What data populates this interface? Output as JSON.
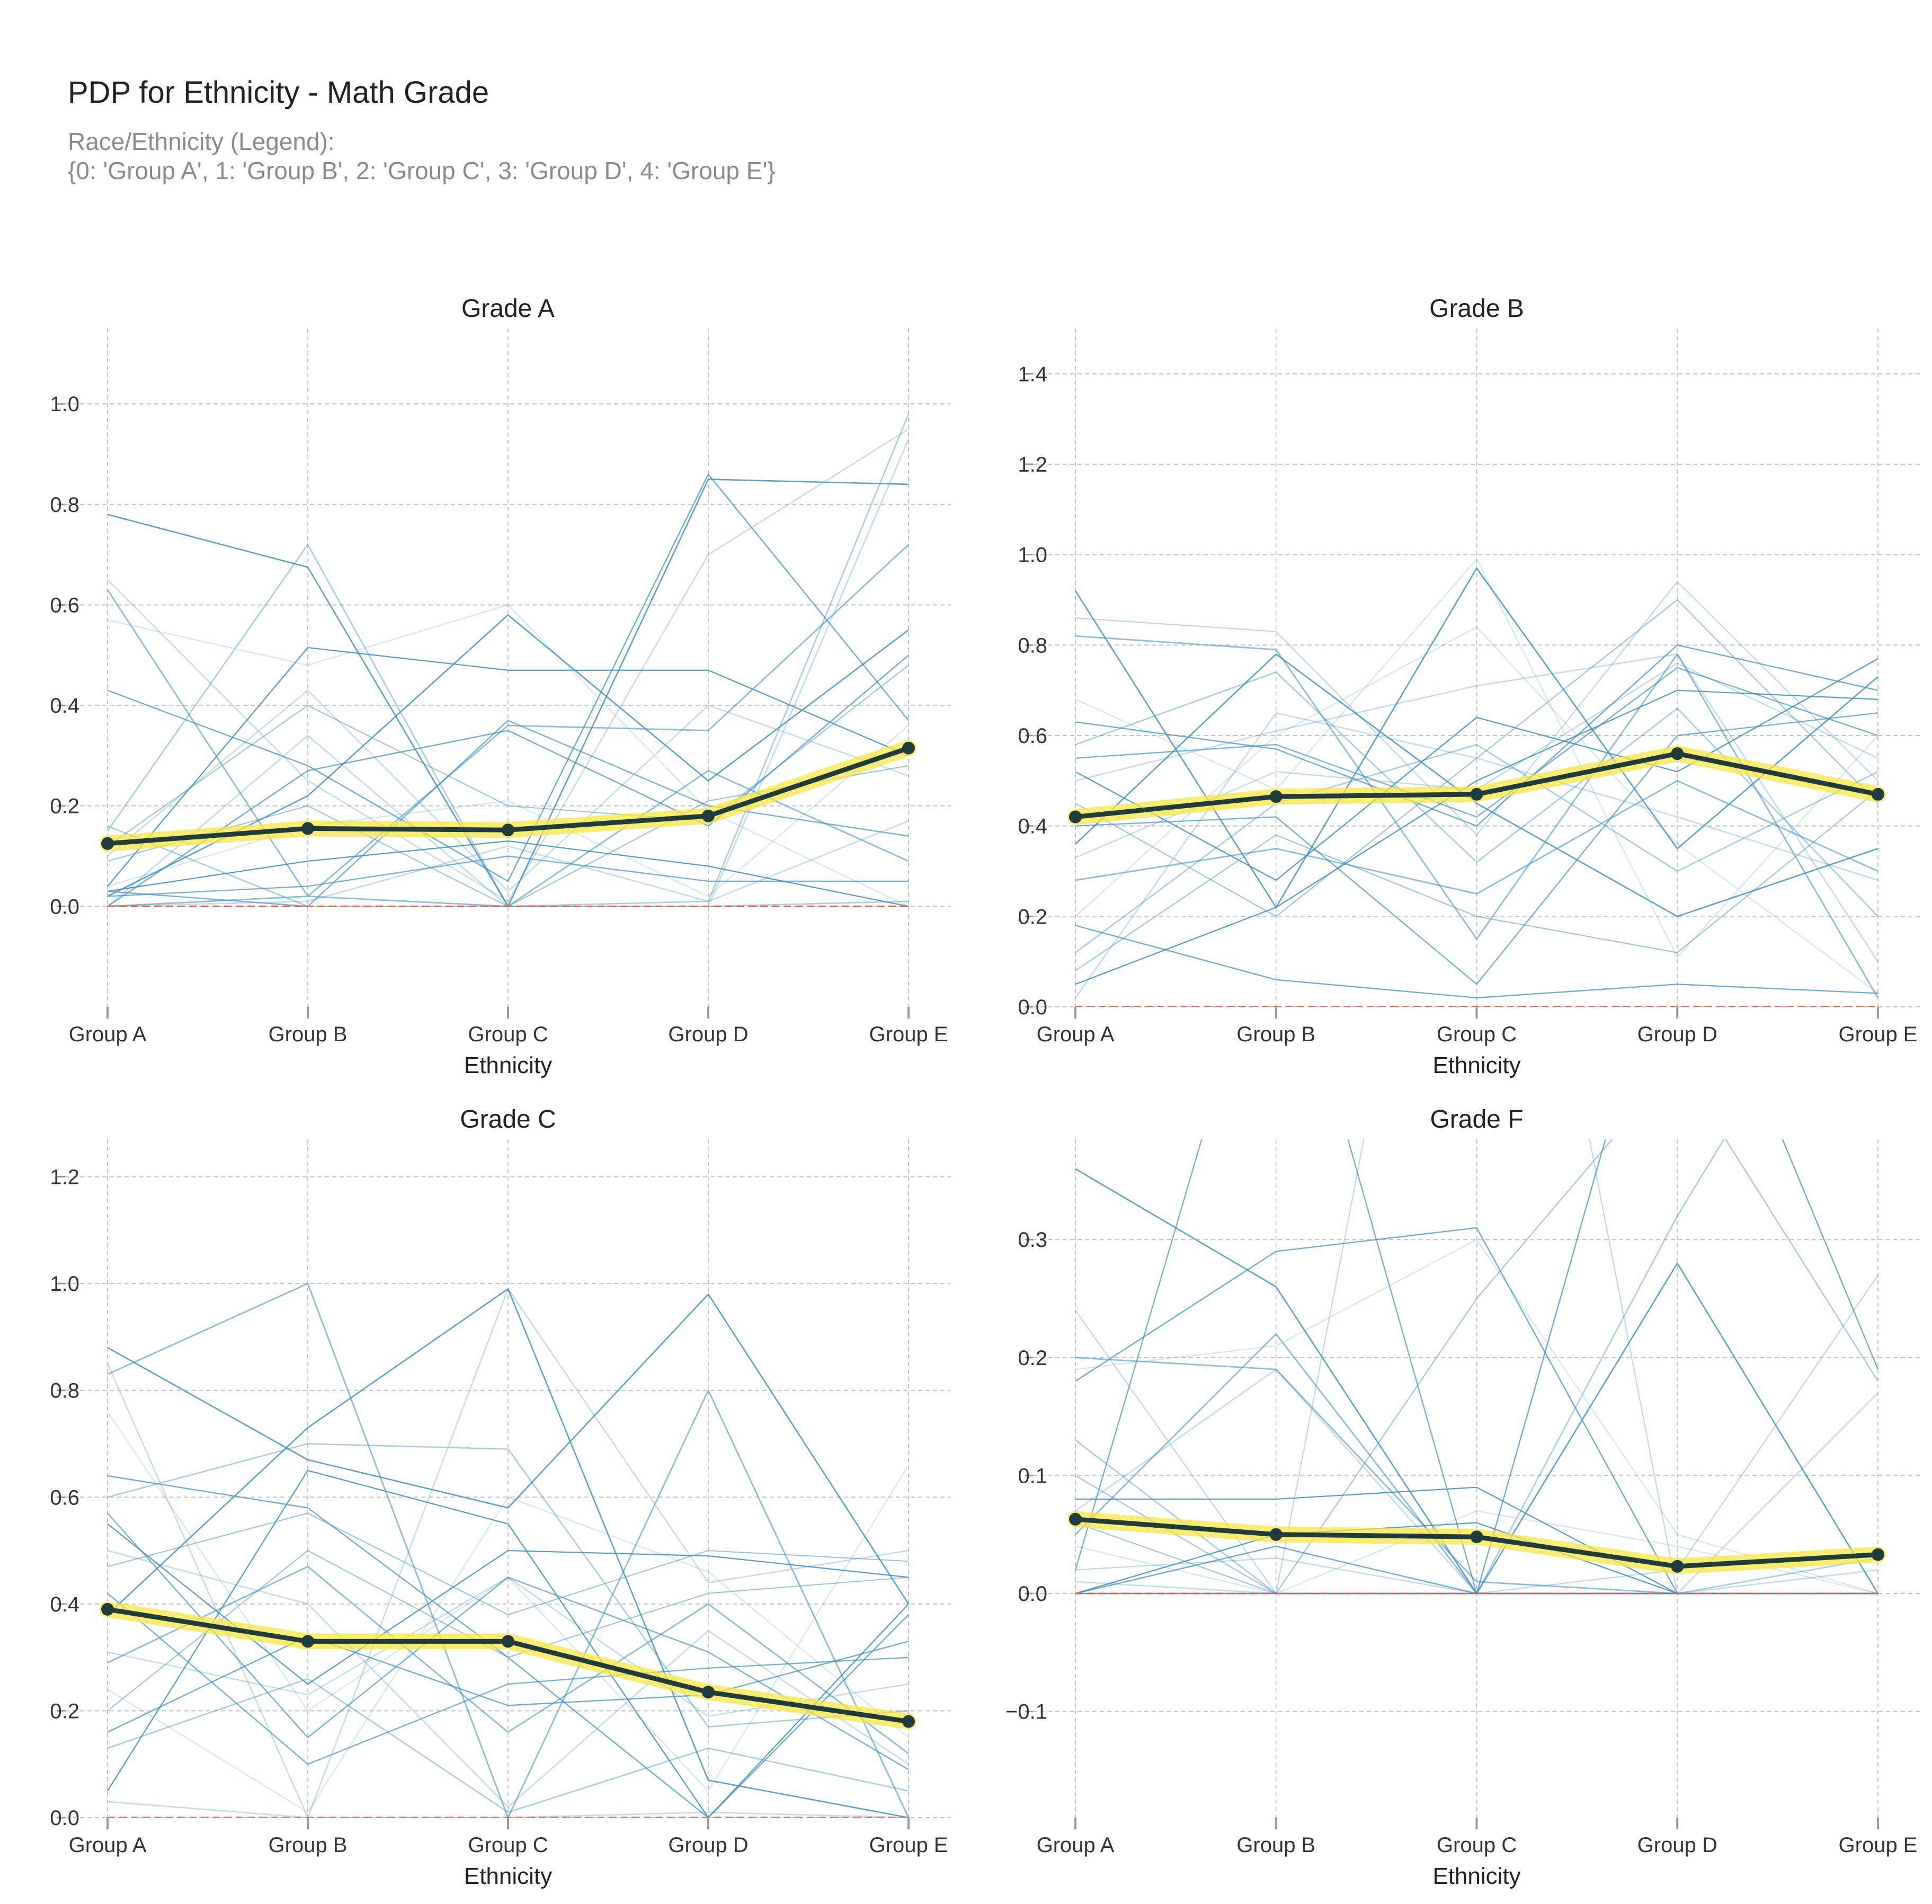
{
  "figure": {
    "title": "PDP for Ethnicity - Math Grade",
    "subtitle_line1": "Race/Ethnicity (Legend):",
    "subtitle_line2": "{0: 'Group A', 1: 'Group B', 2: 'Group C', 3: 'Group D', 4: 'Group E'}"
  },
  "colors": {
    "ice": "#3f8fc4",
    "pdp_line": "#1f3b3b",
    "pdp_band": "#f5e642",
    "zero_line": "#e8604c",
    "grid": "#c4c4c4",
    "tick": "#9a9a9a"
  },
  "chart_data": [
    {
      "type": "line",
      "title": "Grade A",
      "xlabel": "Ethnicity",
      "ylabel": "",
      "categories": [
        "Group A",
        "Group B",
        "Group C",
        "Group D",
        "Group E"
      ],
      "ylim": [
        -0.2,
        1.15
      ],
      "yticks": [
        0.0,
        0.2,
        0.4,
        0.6,
        0.8,
        1.0
      ],
      "ytick_labels": [
        "0.0",
        "0.2",
        "0.4",
        "0.6",
        "0.8",
        "1.0"
      ],
      "grid": true,
      "pdp": [
        0.125,
        0.155,
        0.152,
        0.18,
        0.315
      ],
      "ice_lines": [
        [
          0.78,
          0.675,
          0.0,
          0.85,
          0.84
        ],
        [
          0.65,
          0.25,
          0.01,
          0.7,
          0.95
        ],
        [
          0.63,
          0.02,
          0.36,
          0.35,
          0.72
        ],
        [
          0.57,
          0.48,
          0.6,
          0.19,
          0.0
        ],
        [
          0.43,
          0.28,
          0.05,
          0.86,
          0.37
        ],
        [
          0.15,
          0.72,
          0.0,
          0.01,
          0.98
        ],
        [
          0.04,
          0.515,
          0.47,
          0.47,
          0.3
        ],
        [
          0.0,
          0.34,
          0.0,
          0.0,
          0.93
        ],
        [
          0.12,
          0.4,
          0.2,
          0.17,
          0.48
        ],
        [
          0.03,
          0.0,
          0.37,
          0.2,
          0.14
        ],
        [
          0.02,
          0.22,
          0.58,
          0.25,
          0.55
        ],
        [
          0.1,
          0.43,
          0.03,
          0.4,
          0.26
        ],
        [
          0.0,
          0.02,
          0.0,
          0.27,
          0.09
        ],
        [
          0.04,
          0.16,
          0.21,
          0.02,
          0.36
        ],
        [
          0.0,
          0.27,
          0.35,
          0.16,
          0.5
        ],
        [
          0.16,
          0.0,
          0.0,
          0.0,
          0.01
        ],
        [
          0.03,
          0.09,
          0.13,
          0.08,
          0.0
        ],
        [
          0.0,
          0.01,
          0.12,
          0.01,
          0.17
        ],
        [
          0.09,
          0.2,
          0.0,
          0.21,
          0.28
        ],
        [
          0.02,
          0.04,
          0.1,
          0.05,
          0.05
        ]
      ]
    },
    {
      "type": "line",
      "title": "Grade B",
      "xlabel": "Ethnicity",
      "ylabel": "",
      "categories": [
        "Group A",
        "Group B",
        "Group C",
        "Group D",
        "Group E"
      ],
      "ylim": [
        0.0,
        1.5
      ],
      "yticks": [
        0.0,
        0.2,
        0.4,
        0.6,
        0.8,
        1.0,
        1.2,
        1.4
      ],
      "ytick_labels": [
        "0.0",
        "0.2",
        "0.4",
        "0.6",
        "0.8",
        "1.0",
        "1.2",
        "1.4"
      ],
      "grid": true,
      "pdp": [
        0.42,
        0.465,
        0.47,
        0.56,
        0.47
      ],
      "ice_lines": [
        [
          0.92,
          0.22,
          0.97,
          0.35,
          0.73
        ],
        [
          0.86,
          0.83,
          0.38,
          0.94,
          0.5
        ],
        [
          0.82,
          0.79,
          0.15,
          0.78,
          0.02
        ],
        [
          0.68,
          0.48,
          0.99,
          0.11,
          0.6
        ],
        [
          0.63,
          0.57,
          0.4,
          0.8,
          0.7
        ],
        [
          0.58,
          0.74,
          0.32,
          0.66,
          0.2
        ],
        [
          0.52,
          0.28,
          0.64,
          0.52,
          0.77
        ],
        [
          0.5,
          0.61,
          0.71,
          0.78,
          0.1
        ],
        [
          0.45,
          0.2,
          0.55,
          0.9,
          0.45
        ],
        [
          0.4,
          0.42,
          0.05,
          0.6,
          0.65
        ],
        [
          0.36,
          0.78,
          0.45,
          0.2,
          0.35
        ],
        [
          0.33,
          0.52,
          0.48,
          0.76,
          0.55
        ],
        [
          0.28,
          0.35,
          0.25,
          0.5,
          0.3
        ],
        [
          0.2,
          0.6,
          0.84,
          0.36,
          0.03
        ],
        [
          0.18,
          0.06,
          0.02,
          0.05,
          0.03
        ],
        [
          0.12,
          0.45,
          0.58,
          0.3,
          0.52
        ],
        [
          0.05,
          0.22,
          0.5,
          0.7,
          0.68
        ],
        [
          0.02,
          0.65,
          0.55,
          0.42,
          0.28
        ],
        [
          0.08,
          0.38,
          0.2,
          0.12,
          0.48
        ],
        [
          0.55,
          0.58,
          0.42,
          0.75,
          0.6
        ]
      ]
    },
    {
      "type": "line",
      "title": "Grade C",
      "xlabel": "Ethnicity",
      "ylabel": "",
      "categories": [
        "Group A",
        "Group B",
        "Group C",
        "Group D",
        "Group E"
      ],
      "ylim": [
        0.0,
        1.27
      ],
      "yticks": [
        0.0,
        0.2,
        0.4,
        0.6,
        0.8,
        1.0,
        1.2
      ],
      "ytick_labels": [
        "0.0",
        "0.2",
        "0.4",
        "0.6",
        "0.8",
        "1.0",
        "1.2"
      ],
      "grid": true,
      "pdp": [
        0.39,
        0.33,
        0.33,
        0.235,
        0.18
      ],
      "ice_lines": [
        [
          0.88,
          0.67,
          0.58,
          0.98,
          0.4
        ],
        [
          0.85,
          0.0,
          0.99,
          0.44,
          0.5
        ],
        [
          0.83,
          1.0,
          0.0,
          0.8,
          0.0
        ],
        [
          0.76,
          0.2,
          0.45,
          0.05,
          0.66
        ],
        [
          0.64,
          0.58,
          0.3,
          0.0,
          0.38
        ],
        [
          0.6,
          0.7,
          0.69,
          0.17,
          0.2
        ],
        [
          0.55,
          0.25,
          0.5,
          0.49,
          0.45
        ],
        [
          0.5,
          0.4,
          0.02,
          0.35,
          0.1
        ],
        [
          0.47,
          0.57,
          0.38,
          0.5,
          0.48
        ],
        [
          0.42,
          0.1,
          0.25,
          0.28,
          0.3
        ],
        [
          0.38,
          0.73,
          0.99,
          0.07,
          0.0
        ],
        [
          0.31,
          0.23,
          0.45,
          0.19,
          0.25
        ],
        [
          0.29,
          0.47,
          0.16,
          0.4,
          0.12
        ],
        [
          0.24,
          0.01,
          0.6,
          0.46,
          0.15
        ],
        [
          0.16,
          0.34,
          0.21,
          0.23,
          0.33
        ],
        [
          0.13,
          0.26,
          0.01,
          0.13,
          0.05
        ],
        [
          0.05,
          0.65,
          0.55,
          0.0,
          0.4
        ],
        [
          0.03,
          0.0,
          0.0,
          0.01,
          0.0
        ],
        [
          0.2,
          0.5,
          0.3,
          0.42,
          0.45
        ],
        [
          0.57,
          0.15,
          0.45,
          0.31,
          0.09
        ]
      ]
    },
    {
      "type": "line",
      "title": "Grade F",
      "xlabel": "Ethnicity",
      "ylabel": "",
      "categories": [
        "Group A",
        "Group B",
        "Group C",
        "Group D",
        "Group E"
      ],
      "ylim": [
        -0.19,
        0.385
      ],
      "yticks": [
        -0.1,
        0.0,
        0.1,
        0.2,
        0.3
      ],
      "ytick_labels": [
        "−0.1",
        "0.0",
        "0.1",
        "0.2",
        "0.3"
      ],
      "grid": true,
      "pdp": [
        0.063,
        0.05,
        0.048,
        0.023,
        0.033
      ],
      "ice_lines": [
        [
          0.36,
          0.26,
          0.0,
          0.0,
          0.0
        ],
        [
          0.24,
          0.0,
          0.88,
          0.0,
          0.17
        ],
        [
          0.2,
          0.19,
          0.01,
          0.0,
          0.0
        ],
        [
          0.19,
          0.21,
          0.3,
          0.05,
          0.0
        ],
        [
          0.18,
          0.29,
          0.31,
          0.0,
          0.0
        ],
        [
          0.13,
          0.0,
          0.0,
          0.32,
          0.6
        ],
        [
          0.08,
          0.08,
          0.09,
          0.0,
          0.0
        ],
        [
          0.07,
          0.19,
          0.0,
          0.0,
          0.0
        ],
        [
          0.06,
          0.0,
          0.25,
          0.45,
          0.18
        ],
        [
          0.02,
          0.6,
          0.0,
          0.0,
          0.0
        ],
        [
          0.0,
          0.0,
          0.0,
          0.28,
          0.0
        ],
        [
          0.02,
          0.03,
          0.0,
          0.02,
          0.27
        ],
        [
          0.05,
          0.22,
          0.0,
          0.0,
          0.0
        ],
        [
          0.04,
          0.0,
          0.07,
          0.04,
          0.0
        ],
        [
          0.0,
          0.04,
          0.0,
          0.6,
          0.19
        ],
        [
          0.1,
          0.0,
          0.0,
          0.0,
          0.03
        ],
        [
          0.0,
          0.05,
          0.06,
          0.0,
          0.0
        ],
        [
          0.01,
          0.0,
          0.0,
          0.0,
          0.02
        ]
      ]
    }
  ]
}
